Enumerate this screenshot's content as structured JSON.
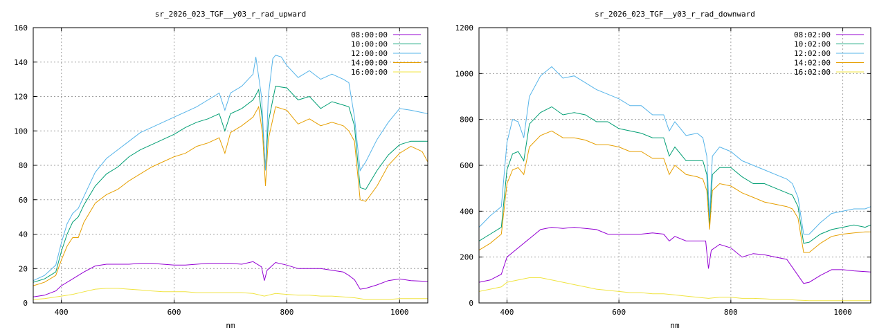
{
  "chart_data": [
    {
      "type": "line",
      "title": "sr_2026_023_TGF__y03_r_rad_upward",
      "xlabel": "nm",
      "ylabel": "",
      "xlim": [
        350,
        1050
      ],
      "ylim": [
        0,
        160
      ],
      "xticks": [
        400,
        600,
        800,
        1000
      ],
      "yticks": [
        0,
        20,
        40,
        60,
        80,
        100,
        120,
        140,
        160
      ],
      "grid": true,
      "legend": "top-right",
      "series": [
        {
          "name": "08:00:00",
          "color": "#9400d3",
          "x": [
            350,
            370,
            390,
            400,
            420,
            440,
            460,
            480,
            500,
            520,
            540,
            560,
            580,
            600,
            620,
            640,
            660,
            680,
            700,
            720,
            740,
            755,
            760,
            765,
            780,
            800,
            820,
            840,
            860,
            880,
            900,
            910,
            920,
            930,
            940,
            960,
            980,
            1000,
            1020,
            1050
          ],
          "y": [
            3.5,
            4.5,
            7,
            10,
            14,
            18,
            21.5,
            22.5,
            22.5,
            22.5,
            23,
            23,
            22.5,
            22,
            22,
            22.5,
            23,
            23,
            23,
            22.5,
            24,
            21,
            13,
            19,
            23.5,
            22,
            20,
            20,
            20,
            19,
            18,
            16,
            13.5,
            8,
            8.5,
            10.5,
            13,
            14,
            13,
            12.5
          ]
        },
        {
          "name": "10:00:00",
          "color": "#009e73",
          "x": [
            350,
            370,
            390,
            400,
            410,
            420,
            430,
            440,
            460,
            480,
            500,
            520,
            540,
            560,
            580,
            600,
            620,
            640,
            660,
            680,
            690,
            700,
            720,
            740,
            750,
            757,
            762,
            767,
            780,
            800,
            820,
            840,
            860,
            880,
            900,
            910,
            920,
            930,
            940,
            960,
            980,
            1000,
            1020,
            1050
          ],
          "y": [
            12,
            14,
            18,
            30,
            40,
            47,
            50,
            57,
            68,
            75,
            79,
            85,
            89,
            92,
            95,
            98,
            102,
            105,
            107,
            110,
            100,
            110,
            113,
            118,
            124,
            105,
            77,
            105,
            126,
            125,
            118,
            120,
            113,
            117,
            115,
            114,
            103,
            67,
            66,
            77,
            86,
            92,
            94,
            94
          ]
        },
        {
          "name": "12:00:00",
          "color": "#56b4e9",
          "x": [
            350,
            370,
            390,
            400,
            410,
            420,
            430,
            440,
            460,
            480,
            500,
            520,
            540,
            560,
            580,
            600,
            620,
            640,
            660,
            680,
            690,
            700,
            720,
            740,
            745,
            755,
            762,
            767,
            775,
            780,
            790,
            800,
            820,
            840,
            860,
            880,
            900,
            910,
            920,
            930,
            940,
            960,
            980,
            1000,
            1020,
            1050
          ],
          "y": [
            13,
            16,
            22,
            35,
            46,
            52,
            55,
            62,
            76,
            84,
            89,
            94,
            99,
            102,
            105,
            108,
            111,
            114,
            118,
            122,
            112,
            122,
            126,
            133,
            143,
            120,
            77,
            120,
            142,
            144,
            143,
            138,
            131,
            135,
            130,
            133,
            130,
            128,
            108,
            77,
            82,
            95,
            105,
            113,
            112,
            110
          ]
        },
        {
          "name": "14:00:00",
          "color": "#e69f00",
          "x": [
            350,
            370,
            390,
            400,
            410,
            420,
            430,
            440,
            460,
            480,
            500,
            520,
            540,
            560,
            580,
            600,
            620,
            640,
            660,
            680,
            690,
            700,
            720,
            740,
            750,
            757,
            762,
            767,
            780,
            800,
            820,
            840,
            860,
            880,
            900,
            910,
            920,
            930,
            940,
            960,
            980,
            1000,
            1020,
            1040,
            1050
          ],
          "y": [
            10,
            12,
            16,
            25,
            33,
            38,
            38,
            47,
            58,
            63,
            66,
            71,
            75,
            79,
            82,
            85,
            87,
            91,
            93,
            96,
            87,
            99,
            103,
            108,
            114,
            98,
            68,
            95,
            114,
            112,
            104,
            107,
            103,
            105,
            103,
            100,
            94,
            60,
            59,
            68,
            80,
            87,
            91,
            88,
            82
          ]
        },
        {
          "name": "16:00:00",
          "color": "#f0e442",
          "x": [
            350,
            370,
            400,
            420,
            440,
            460,
            480,
            500,
            520,
            540,
            560,
            580,
            600,
            620,
            640,
            660,
            680,
            700,
            720,
            740,
            760,
            780,
            800,
            820,
            840,
            860,
            880,
            900,
            920,
            940,
            960,
            980,
            1000,
            1020,
            1050
          ],
          "y": [
            2,
            2.5,
            4,
            5,
            6.5,
            8,
            8.5,
            8.5,
            8,
            7.5,
            7,
            6.5,
            6.5,
            6.5,
            6,
            6,
            6,
            6,
            6,
            5.5,
            4,
            5.5,
            5,
            4.5,
            4.5,
            4,
            4,
            3.5,
            3,
            2,
            2,
            2,
            2.5,
            2.5,
            2.5
          ]
        }
      ]
    },
    {
      "type": "line",
      "title": "sr_2026_023_TGF__y03_r_rad_downward",
      "xlabel": "nm",
      "ylabel": "",
      "xlim": [
        350,
        1050
      ],
      "ylim": [
        0,
        1200
      ],
      "xticks": [
        400,
        600,
        800,
        1000
      ],
      "yticks": [
        0,
        200,
        400,
        600,
        800,
        1000,
        1200
      ],
      "grid": true,
      "legend": "top-right",
      "series": [
        {
          "name": "08:02:00",
          "color": "#9400d3",
          "x": [
            350,
            370,
            390,
            400,
            420,
            440,
            460,
            480,
            500,
            520,
            540,
            560,
            580,
            600,
            620,
            640,
            660,
            680,
            690,
            700,
            720,
            740,
            755,
            760,
            765,
            780,
            800,
            820,
            840,
            860,
            880,
            900,
            920,
            930,
            940,
            960,
            980,
            1000,
            1020,
            1050
          ],
          "y": [
            90,
            100,
            125,
            200,
            240,
            280,
            320,
            330,
            325,
            330,
            325,
            320,
            300,
            300,
            300,
            300,
            305,
            300,
            270,
            290,
            270,
            270,
            270,
            150,
            230,
            255,
            240,
            200,
            215,
            210,
            200,
            190,
            120,
            85,
            90,
            120,
            145,
            145,
            140,
            135
          ]
        },
        {
          "name": "10:02:00",
          "color": "#009e73",
          "x": [
            350,
            370,
            390,
            400,
            410,
            420,
            430,
            440,
            460,
            480,
            500,
            520,
            540,
            560,
            580,
            600,
            620,
            640,
            660,
            680,
            690,
            700,
            720,
            740,
            750,
            757,
            762,
            767,
            780,
            800,
            820,
            840,
            860,
            880,
            900,
            910,
            920,
            930,
            940,
            960,
            980,
            1000,
            1020,
            1040,
            1050
          ],
          "y": [
            270,
            300,
            330,
            580,
            650,
            660,
            620,
            780,
            830,
            855,
            820,
            830,
            820,
            790,
            790,
            760,
            750,
            740,
            720,
            720,
            640,
            680,
            620,
            620,
            620,
            560,
            340,
            560,
            590,
            590,
            550,
            520,
            520,
            500,
            480,
            470,
            420,
            260,
            265,
            300,
            320,
            330,
            340,
            330,
            340
          ]
        },
        {
          "name": "12:02:00",
          "color": "#56b4e9",
          "x": [
            350,
            370,
            390,
            400,
            410,
            420,
            430,
            440,
            460,
            480,
            500,
            520,
            540,
            560,
            580,
            600,
            620,
            640,
            660,
            680,
            690,
            700,
            720,
            740,
            750,
            757,
            762,
            767,
            780,
            800,
            820,
            840,
            860,
            880,
            900,
            910,
            920,
            930,
            940,
            960,
            980,
            1000,
            1020,
            1040,
            1050
          ],
          "y": [
            330,
            380,
            420,
            700,
            800,
            790,
            720,
            900,
            990,
            1030,
            980,
            990,
            960,
            930,
            910,
            890,
            860,
            860,
            820,
            820,
            750,
            790,
            730,
            740,
            720,
            640,
            370,
            640,
            680,
            660,
            620,
            600,
            580,
            560,
            540,
            520,
            460,
            300,
            300,
            350,
            390,
            400,
            410,
            410,
            420
          ]
        },
        {
          "name": "14:02:00",
          "color": "#e69f00",
          "x": [
            350,
            370,
            390,
            400,
            410,
            420,
            430,
            440,
            460,
            480,
            500,
            520,
            540,
            560,
            580,
            600,
            620,
            640,
            660,
            680,
            690,
            700,
            720,
            740,
            750,
            757,
            762,
            767,
            780,
            800,
            820,
            840,
            860,
            880,
            900,
            910,
            920,
            930,
            940,
            960,
            980,
            1000,
            1020,
            1040,
            1050
          ],
          "y": [
            230,
            260,
            300,
            520,
            580,
            590,
            560,
            680,
            730,
            750,
            720,
            720,
            710,
            690,
            690,
            680,
            660,
            660,
            630,
            630,
            560,
            600,
            560,
            550,
            540,
            490,
            320,
            490,
            520,
            510,
            480,
            460,
            440,
            430,
            420,
            410,
            370,
            220,
            220,
            260,
            290,
            300,
            305,
            310,
            310
          ]
        },
        {
          "name": "16:02:00",
          "color": "#f0e442",
          "x": [
            350,
            370,
            390,
            400,
            420,
            440,
            460,
            480,
            500,
            520,
            540,
            560,
            580,
            600,
            620,
            640,
            660,
            680,
            700,
            720,
            740,
            760,
            780,
            800,
            820,
            840,
            860,
            880,
            900,
            920,
            940,
            960,
            980,
            1000,
            1020,
            1050
          ],
          "y": [
            50,
            60,
            70,
            90,
            100,
            110,
            110,
            100,
            90,
            80,
            70,
            60,
            55,
            50,
            45,
            45,
            40,
            40,
            35,
            30,
            25,
            20,
            25,
            25,
            20,
            20,
            18,
            15,
            15,
            12,
            10,
            10,
            10,
            10,
            10,
            10
          ]
        }
      ]
    }
  ]
}
